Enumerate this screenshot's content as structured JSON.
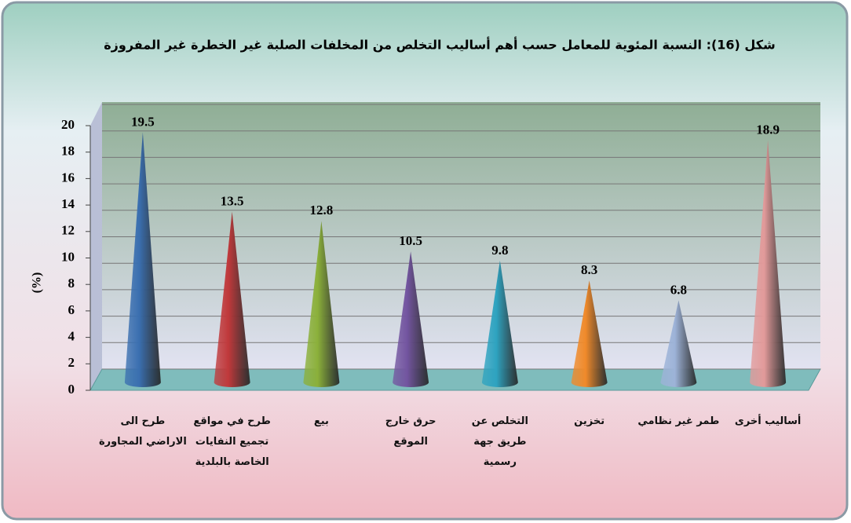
{
  "chart_data": {
    "type": "cone",
    "title": "شكل (16): النسبة المئوية للمعامل حسب أهم أساليب التخلص من المخلفات الصلبة غير الخطرة غير المفروزة",
    "y_label": "(%)",
    "categories": [
      "طرح الى الاراضي المجاورة",
      "طرح في مواقع تجميع النفايات الخاصة بالبلدية",
      "بيع",
      "حرق خارج الموقع",
      "التخلص عن طريق جهة رسمية",
      "تخزين",
      "طمر غير نظامي",
      "أساليب أخرى"
    ],
    "values": [
      19.5,
      13.5,
      12.8,
      10.5,
      9.8,
      8.3,
      6.8,
      18.9
    ],
    "colors": [
      "#3a6fb0",
      "#c0393b",
      "#8bb03a",
      "#7355a0",
      "#2ea3c0",
      "#f08a2a",
      "#9db3d8",
      "#e29a9a"
    ],
    "ylim": [
      0,
      20
    ],
    "yticks": [
      0,
      2,
      4,
      6,
      8,
      10,
      12,
      14,
      16,
      18,
      20
    ],
    "grid": true
  }
}
